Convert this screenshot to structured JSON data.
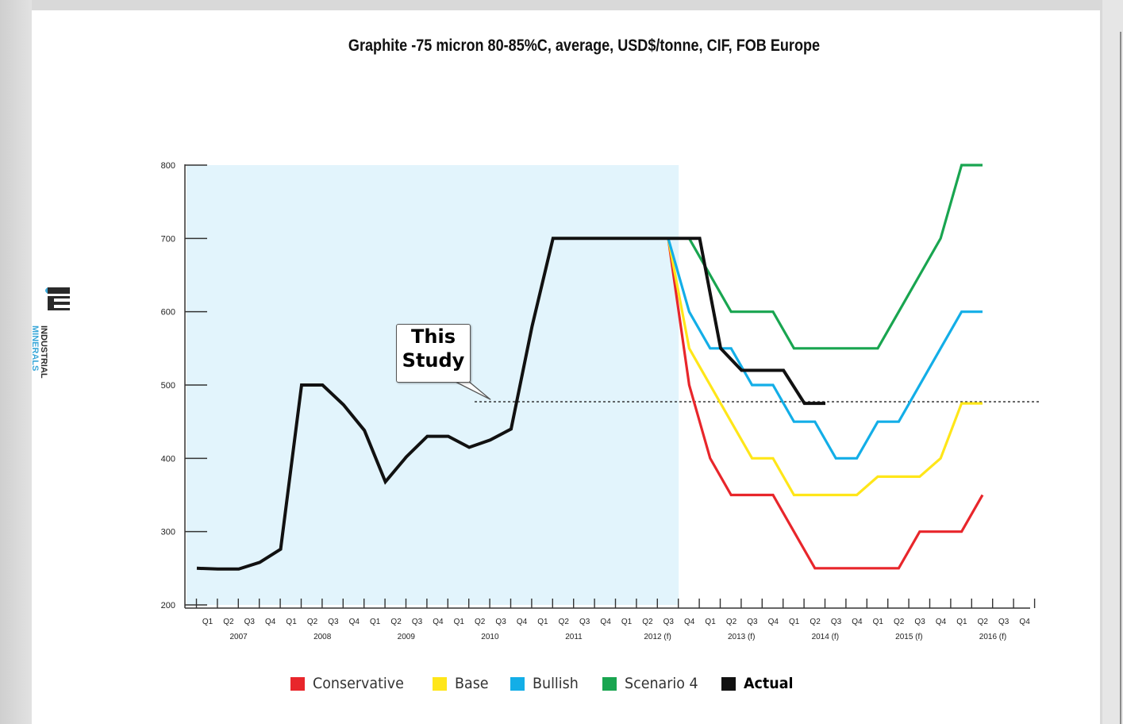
{
  "chart_data": {
    "type": "line",
    "title": "Graphite -75 micron 80-85%C, average, USD$/tonne, CIF, FOB Europe",
    "xlabel": "",
    "ylabel": "",
    "ylim": [
      200,
      800
    ],
    "yticks": [
      200,
      300,
      400,
      500,
      600,
      700,
      800
    ],
    "quarters": [
      "Q1",
      "Q2",
      "Q3",
      "Q4",
      "Q1",
      "Q2",
      "Q3",
      "Q4",
      "Q1",
      "Q2",
      "Q3",
      "Q4",
      "Q1",
      "Q2",
      "Q3",
      "Q4",
      "Q1",
      "Q2",
      "Q3",
      "Q4",
      "Q1",
      "Q2",
      "Q3",
      "Q4",
      "Q1",
      "Q2",
      "Q3",
      "Q4",
      "Q1",
      "Q2",
      "Q3",
      "Q4",
      "Q1",
      "Q2",
      "Q3",
      "Q4",
      "Q1",
      "Q2",
      "Q3",
      "Q4"
    ],
    "years": [
      "2007",
      "2008",
      "2009",
      "2010",
      "2011",
      "2012 (f)",
      "2013 (f)",
      "2014 (f)",
      "2015 (f)",
      "2016 (f)"
    ],
    "history_shading_end_quarter": 23,
    "reference_line": {
      "value": 475,
      "start_quarter": 12.5,
      "end_quarter": 39.8,
      "style": "dotted"
    },
    "callout": {
      "line1": "This",
      "line2": "Study",
      "target_quarter": 13.3,
      "target_value": 478
    },
    "series": [
      {
        "name": "Conservative",
        "color": "#e8262b",
        "x": [
          22.5,
          23.5,
          24.5,
          25.5,
          27.5,
          28.5,
          29.5,
          33.5,
          34.5,
          36.5,
          37.5
        ],
        "values": [
          700,
          500,
          400,
          350,
          350,
          300,
          250,
          250,
          300,
          300,
          350
        ]
      },
      {
        "name": "Base",
        "color": "#ffe619",
        "x": [
          22.5,
          23.5,
          24.5,
          25.5,
          26.5,
          27.5,
          28.5,
          31.5,
          32.5,
          33.5,
          34.5,
          35.5,
          36.5,
          37.5
        ],
        "values": [
          700,
          550,
          500,
          450,
          400,
          400,
          350,
          350,
          375,
          375,
          375,
          400,
          475,
          475
        ]
      },
      {
        "name": "Bullish",
        "color": "#13aee7",
        "x": [
          22.5,
          23.5,
          24.5,
          25.5,
          26.5,
          27.5,
          28.5,
          29.5,
          30.5,
          31.5,
          32.5,
          33.5,
          35.5,
          36.5,
          37.5
        ],
        "values": [
          700,
          600,
          550,
          550,
          500,
          500,
          450,
          450,
          400,
          400,
          450,
          450,
          550,
          600,
          600
        ]
      },
      {
        "name": "Scenario 4",
        "color": "#19a550",
        "x": [
          22.5,
          23.5,
          25.5,
          27.5,
          28.5,
          31.5,
          32.5,
          33.5,
          34.5,
          35.5,
          36.5,
          37.5
        ],
        "values": [
          700,
          700,
          600,
          600,
          550,
          550,
          550,
          600,
          650,
          700,
          800,
          800
        ]
      },
      {
        "name": "Actual",
        "color": "#111111",
        "x": [
          0,
          1,
          2,
          3,
          4,
          5,
          6,
          7,
          8,
          9,
          10,
          11,
          12,
          13,
          14,
          15,
          16,
          17,
          18,
          19,
          20,
          21,
          22,
          23,
          24,
          25,
          26,
          27,
          28,
          29,
          30
        ],
        "values": [
          250,
          249,
          249,
          258,
          276,
          500,
          500,
          473,
          438,
          368,
          402,
          430,
          430,
          415,
          425,
          440,
          580,
          700,
          700,
          700,
          700,
          700,
          700,
          700,
          700,
          550,
          520,
          520,
          520,
          475,
          475
        ]
      }
    ],
    "legend_position": "bottom"
  },
  "logo": {
    "line1": "INDUSTRIAL",
    "line2": "MINERALS"
  }
}
